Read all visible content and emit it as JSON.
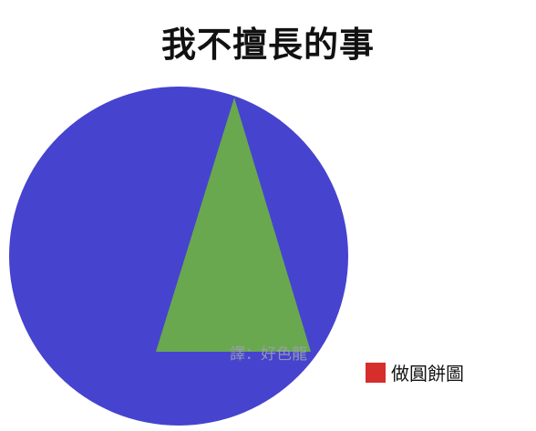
{
  "chart_data": {
    "type": "pie",
    "title": "我不擅長的事",
    "background_color": "#4643CF",
    "highlight_color": "#69A84F",
    "legend": {
      "placement": "bottom-right",
      "entries": [
        {
          "label": "做圓餅圖",
          "color": "#D62D2D"
        }
      ]
    }
  },
  "watermark": "譯：好色龍"
}
